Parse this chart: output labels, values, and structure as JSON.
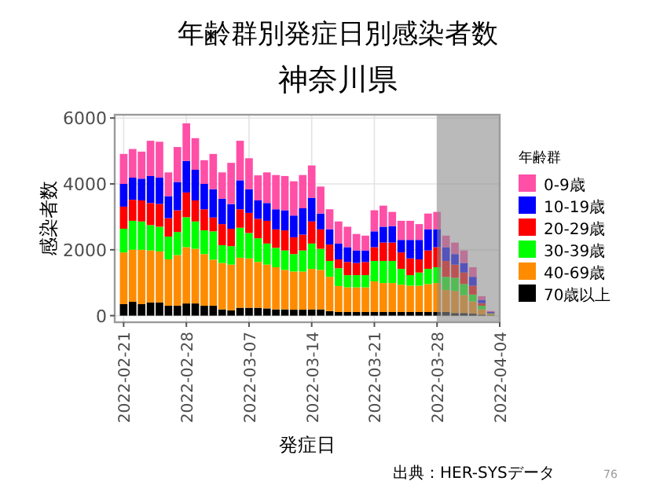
{
  "chart_data": {
    "type": "bar",
    "stacked": true,
    "title": "年齢群別発症日別感染者数",
    "subtitle": "神奈川県",
    "xlabel": "発症日",
    "ylabel": "感染者数",
    "legend_title": "年齢群",
    "x": [
      "2022-02-21",
      "2022-02-22",
      "2022-02-23",
      "2022-02-24",
      "2022-02-25",
      "2022-02-26",
      "2022-02-27",
      "2022-02-28",
      "2022-03-01",
      "2022-03-02",
      "2022-03-03",
      "2022-03-04",
      "2022-03-05",
      "2022-03-06",
      "2022-03-07",
      "2022-03-08",
      "2022-03-09",
      "2022-03-10",
      "2022-03-11",
      "2022-03-12",
      "2022-03-13",
      "2022-03-14",
      "2022-03-15",
      "2022-03-16",
      "2022-03-17",
      "2022-03-18",
      "2022-03-19",
      "2022-03-20",
      "2022-03-21",
      "2022-03-22",
      "2022-03-23",
      "2022-03-24",
      "2022-03-25",
      "2022-03-26",
      "2022-03-27",
      "2022-03-28",
      "2022-03-29",
      "2022-03-30",
      "2022-03-31",
      "2022-04-01",
      "2022-04-02",
      "2022-04-03"
    ],
    "series": [
      {
        "name": "70歳以上",
        "color": "#000000",
        "values": [
          350,
          420,
          350,
          400,
          400,
          300,
          300,
          370,
          370,
          300,
          300,
          190,
          160,
          240,
          240,
          240,
          220,
          190,
          190,
          180,
          180,
          190,
          190,
          140,
          110,
          110,
          110,
          110,
          110,
          110,
          110,
          110,
          110,
          110,
          110,
          110,
          110,
          80,
          80,
          60,
          30,
          10
        ]
      },
      {
        "name": "40-69歳",
        "color": "#ff8c00",
        "values": [
          1570,
          1580,
          1650,
          1580,
          1550,
          1410,
          1540,
          1710,
          1660,
          1570,
          1400,
          1410,
          1390,
          1520,
          1500,
          1390,
          1330,
          1280,
          1200,
          1160,
          1160,
          1230,
          1200,
          1040,
          790,
          750,
          750,
          750,
          930,
          880,
          880,
          830,
          800,
          800,
          850,
          880,
          670,
          670,
          540,
          370,
          160,
          30
        ]
      },
      {
        "name": "30-39歳",
        "color": "#00ff00",
        "values": [
          720,
          880,
          860,
          770,
          750,
          690,
          700,
          910,
          830,
          720,
          860,
          540,
          560,
          910,
          770,
          720,
          640,
          590,
          590,
          530,
          640,
          770,
          640,
          480,
          540,
          370,
          370,
          370,
          620,
          670,
          670,
          480,
          320,
          400,
          460,
          480,
          400,
          400,
          340,
          210,
          110,
          20
        ]
      },
      {
        "name": "20-29歳",
        "color": "#ff0000",
        "values": [
          670,
          640,
          640,
          670,
          690,
          560,
          660,
          750,
          640,
          640,
          420,
          640,
          530,
          560,
          610,
          590,
          690,
          560,
          610,
          510,
          480,
          670,
          590,
          500,
          270,
          400,
          370,
          400,
          420,
          560,
          560,
          500,
          510,
          400,
          560,
          610,
          480,
          400,
          350,
          270,
          80,
          20
        ]
      },
      {
        "name": "10-19歳",
        "color": "#0000ff",
        "values": [
          690,
          670,
          660,
          820,
          800,
          670,
          860,
          960,
          930,
          770,
          860,
          770,
          750,
          880,
          720,
          560,
          540,
          610,
          610,
          660,
          800,
          720,
          480,
          460,
          480,
          450,
          380,
          350,
          480,
          480,
          500,
          380,
          560,
          590,
          640,
          540,
          420,
          320,
          290,
          270,
          100,
          30
        ]
      },
      {
        "name": "0-9歳",
        "color": "#ff4fa6",
        "values": [
          910,
          870,
          820,
          1070,
          1090,
          720,
          1060,
          1140,
          960,
          720,
          1070,
          800,
          1250,
          1200,
          940,
          760,
          930,
          1040,
          1040,
          1040,
          1010,
          980,
          820,
          610,
          670,
          620,
          500,
          450,
          640,
          640,
          430,
          580,
          580,
          480,
          480,
          530,
          350,
          350,
          380,
          290,
          110,
          30
        ]
      }
    ],
    "xlim": [
      "2022-02-20",
      "2022-04-04"
    ],
    "xticks": [
      "2022-02-21",
      "2022-02-28",
      "2022-03-07",
      "2022-03-14",
      "2022-03-21",
      "2022-03-28",
      "2022-04-04"
    ],
    "ylim": [
      -200,
      6100
    ],
    "yticks": [
      0,
      2000,
      4000,
      6000
    ],
    "bands": [
      {
        "axis": "x",
        "from": "2022-03-28",
        "to": "2022-04-04",
        "color": "#8c8c8c"
      }
    ],
    "grid": true,
    "legend": "right",
    "annotations": [
      "出典：HER-SYSデータ",
      "76"
    ]
  }
}
